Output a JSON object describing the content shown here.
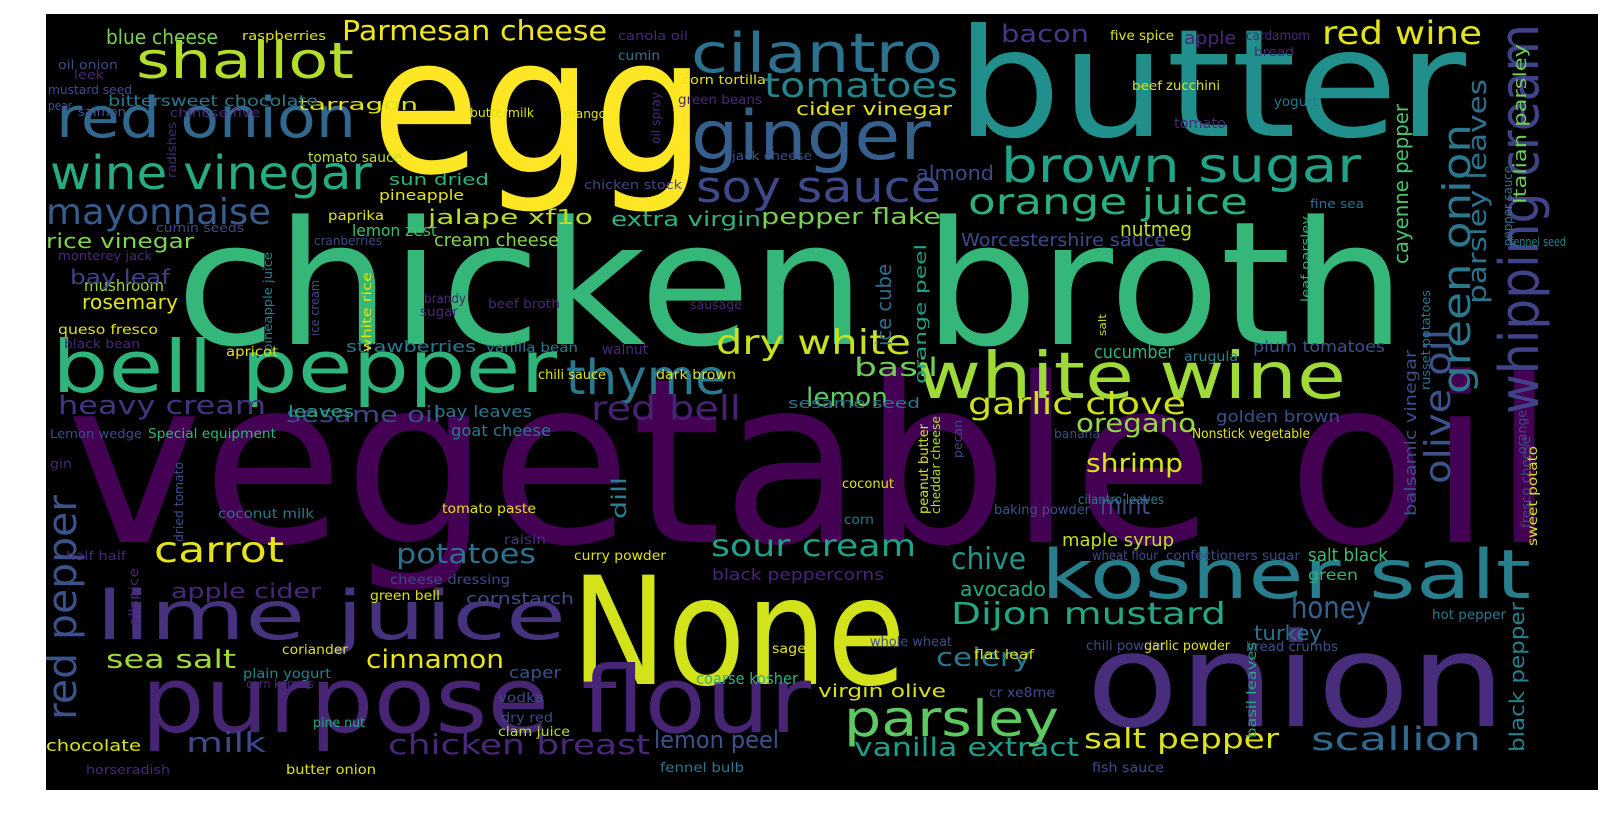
{
  "words": [
    {
      "text": "vegetable oil",
      "color": "#440154"
    },
    {
      "text": "chicken broth",
      "color": "#35b779"
    },
    {
      "text": "egg",
      "color": "#fde725"
    },
    {
      "text": "butter",
      "color": "#21908d"
    },
    {
      "text": "None",
      "color": "#d2e21b"
    },
    {
      "text": "onion",
      "color": "#472d7b"
    },
    {
      "text": "purpose flour",
      "color": "#482475"
    },
    {
      "text": "bell pepper",
      "color": "#2fb47c"
    },
    {
      "text": "lime juice",
      "color": "#46327e"
    },
    {
      "text": "kosher salt",
      "color": "#277f8e"
    },
    {
      "text": "ginger",
      "color": "#355f8d"
    },
    {
      "text": "white wine",
      "color": "#a0da39"
    },
    {
      "text": "red onion",
      "color": "#31688e"
    },
    {
      "text": "whipping cream",
      "color": "#404387"
    },
    {
      "text": "cilantro",
      "color": "#2c728e"
    },
    {
      "text": "shallot",
      "color": "#b5de2b"
    },
    {
      "text": "brown sugar",
      "color": "#20a386"
    },
    {
      "text": "wine vinegar",
      "color": "#25ac82"
    },
    {
      "text": "soy sauce",
      "color": "#3e4989"
    },
    {
      "text": "thyme",
      "color": "#2a788e"
    },
    {
      "text": "parsley",
      "color": "#5ec962"
    },
    {
      "text": "orange juice",
      "color": "#2ab07f"
    },
    {
      "text": "green onion",
      "color": "#2a778e"
    },
    {
      "text": "red pepper",
      "color": "#3b528b"
    },
    {
      "text": "mayonnaise",
      "color": "#365c8d"
    },
    {
      "text": "tomatoes",
      "color": "#25858e"
    },
    {
      "text": "dry white",
      "color": "#c8e020"
    },
    {
      "text": "Dijon mustard",
      "color": "#22a884"
    },
    {
      "text": "carrot",
      "color": "#e5e419"
    },
    {
      "text": "olive oil",
      "color": "#3b528b"
    },
    {
      "text": "sour cream",
      "color": "#1fa287"
    },
    {
      "text": "garlic clove",
      "color": "#d0e11c"
    },
    {
      "text": "red wine",
      "color": "#e2e418"
    },
    {
      "text": "Parmesan cheese",
      "color": "#f1e51d"
    },
    {
      "text": "chicken breast",
      "color": "#482878"
    },
    {
      "text": "scallion",
      "color": "#31688e"
    },
    {
      "text": "vanilla extract",
      "color": "#1f9e89"
    },
    {
      "text": "salt pepper",
      "color": "#dde318"
    },
    {
      "text": "potatoes",
      "color": "#2c728e"
    },
    {
      "text": "chive",
      "color": "#1f958b"
    },
    {
      "text": "honey",
      "color": "#33638d"
    },
    {
      "text": "lemon peel",
      "color": "#3b528b"
    },
    {
      "text": "heavy cream",
      "color": "#46337e"
    },
    {
      "text": "parsley leaves",
      "color": "#2d718e"
    },
    {
      "text": "red bell",
      "color": "#482173"
    },
    {
      "text": "shrimp",
      "color": "#dde318"
    },
    {
      "text": "sea salt",
      "color": "#9fda3a"
    },
    {
      "text": "cinnamon",
      "color": "#e7e419"
    },
    {
      "text": "milk",
      "color": "#3f4889"
    },
    {
      "text": "mint",
      "color": "#3e4c8a"
    },
    {
      "text": "celery",
      "color": "#2a788e"
    },
    {
      "text": "basil",
      "color": "#6ece58"
    },
    {
      "text": "lemon",
      "color": "#5ec962"
    },
    {
      "text": "oregano",
      "color": "#95d840"
    },
    {
      "text": "bacon",
      "color": "#443983"
    },
    {
      "text": "black pepper",
      "color": "#26828e"
    },
    {
      "text": "Italian parsley",
      "color": "#6ece58"
    },
    {
      "text": "cayenne pepper",
      "color": "#4ac16d"
    },
    {
      "text": "pepper flake",
      "color": "#7ad151"
    },
    {
      "text": "extra virgin",
      "color": "#2db27d"
    },
    {
      "text": "sesame oil",
      "color": "#3e4a89"
    },
    {
      "text": "cider vinegar",
      "color": "#e5e419"
    },
    {
      "text": "jalape xf1o",
      "color": "#b8de29"
    },
    {
      "text": "rosemary",
      "color": "#e3e418"
    },
    {
      "text": "rice vinegar",
      "color": "#7fd34e"
    },
    {
      "text": "mushroom",
      "color": "#9bd93c"
    },
    {
      "text": "blue cheese",
      "color": "#7ad151"
    },
    {
      "text": "ice cube",
      "color": "#2e6e8e"
    },
    {
      "text": "turkey",
      "color": "#2c728e"
    },
    {
      "text": "avocado",
      "color": "#22a884"
    },
    {
      "text": "orange peel",
      "color": "#1fa188"
    },
    {
      "text": "nutmeg",
      "color": "#bddf26"
    },
    {
      "text": "lemon zest",
      "color": "#3fbc73"
    },
    {
      "text": "cream cheese",
      "color": "#85d54a"
    },
    {
      "text": "almond",
      "color": "#3e4989"
    },
    {
      "text": "apple cider",
      "color": "#482878"
    },
    {
      "text": "bay leaf",
      "color": "#414287"
    },
    {
      "text": "cucumber",
      "color": "#2fb47c"
    },
    {
      "text": "dill",
      "color": "#26828e"
    },
    {
      "text": "maple syrup",
      "color": "#c2df23"
    },
    {
      "text": "salt black",
      "color": "#3fbc73"
    },
    {
      "text": "Worcestershire sauce",
      "color": "#3e4a89"
    },
    {
      "text": "balsamic vinegar",
      "color": "#3d4e8a"
    },
    {
      "text": "plum tomatoes",
      "color": "#3b528b"
    },
    {
      "text": "golden brown",
      "color": "#3b518b"
    },
    {
      "text": "black peppercorns",
      "color": "#482677"
    },
    {
      "text": "cornstarch",
      "color": "#3e4c8a"
    },
    {
      "text": "coarse kosher",
      "color": "#2db27d"
    },
    {
      "text": "virgin olive",
      "color": "#d8e219"
    },
    {
      "text": "sesame seed",
      "color": "#2c728e"
    },
    {
      "text": "goat cheese",
      "color": "#2a788e"
    },
    {
      "text": "bay leaves",
      "color": "#2a788e"
    },
    {
      "text": "leaves",
      "color": "#20a386"
    },
    {
      "text": "strawberries",
      "color": "#2a788e"
    },
    {
      "text": "tarragon",
      "color": "#dfe318"
    },
    {
      "text": "bittersweet chocolate",
      "color": "#2a788e"
    },
    {
      "text": "sun dried",
      "color": "#2fb47c"
    },
    {
      "text": "pineapple",
      "color": "#e5e419"
    },
    {
      "text": "tomato sauce",
      "color": "#bddf26"
    },
    {
      "text": "chocolate",
      "color": "#dde318"
    },
    {
      "text": "caper",
      "color": "#3b528b"
    },
    {
      "text": "coriander",
      "color": "#d8e219"
    },
    {
      "text": "plain yogurt",
      "color": "#26828e"
    },
    {
      "text": "pine nut",
      "color": "#22a884"
    },
    {
      "text": "vodka",
      "color": "#3e4989"
    },
    {
      "text": "dry red",
      "color": "#3e4989"
    },
    {
      "text": "clam juice",
      "color": "#b5de2b"
    },
    {
      "text": "butter onion",
      "color": "#dde318"
    },
    {
      "text": "fennel bulb",
      "color": "#2a788e"
    },
    {
      "text": "fish sauce",
      "color": "#3e4c8a"
    },
    {
      "text": "flat leaf",
      "color": "#d8e219"
    },
    {
      "text": "cr xe8me",
      "color": "#3e4c8a"
    },
    {
      "text": "whole wheat",
      "color": "#3e4c8a"
    },
    {
      "text": "sage",
      "color": "#dfe318"
    },
    {
      "text": "green bell",
      "color": "#dfe318"
    },
    {
      "text": "cheese dressing",
      "color": "#3e4989"
    },
    {
      "text": "coconut milk",
      "color": "#2a788e"
    },
    {
      "text": "tomato paste",
      "color": "#dfe318"
    },
    {
      "text": "curry powder",
      "color": "#dfe318"
    },
    {
      "text": "raisin",
      "color": "#46327e"
    },
    {
      "text": "corn",
      "color": "#2a788e"
    },
    {
      "text": "coconut",
      "color": "#dfe318"
    },
    {
      "text": "baking powder",
      "color": "#3b528b"
    },
    {
      "text": "cilantro leaves",
      "color": "#2a788e"
    },
    {
      "text": "wheat flour",
      "color": "#3e4989"
    },
    {
      "text": "confectioners sugar",
      "color": "#3e4989"
    },
    {
      "text": "green",
      "color": "#2fb47c"
    },
    {
      "text": "chili powder",
      "color": "#3e4989"
    },
    {
      "text": "garlic powder",
      "color": "#dfe318"
    },
    {
      "text": "bread crumbs",
      "color": "#3b528b"
    },
    {
      "text": "hot pepper",
      "color": "#2a788e"
    },
    {
      "text": "basil leaves",
      "color": "#22a884"
    },
    {
      "text": "Nonstick vegetable",
      "color": "#e5e419"
    },
    {
      "text": "banana",
      "color": "#3e4c8a"
    },
    {
      "text": "pecan",
      "color": "#3e4989"
    },
    {
      "text": "peanut butter",
      "color": "#d8e219"
    },
    {
      "text": "cheddar cheese",
      "color": "#b5de2b"
    },
    {
      "text": "arugula",
      "color": "#26828e"
    },
    {
      "text": "sweet potato",
      "color": "#d8e219"
    },
    {
      "text": "orange",
      "color": "#3e4989"
    },
    {
      "text": "fresco cheese",
      "color": "#3e4c8a"
    },
    {
      "text": "russet potatoes",
      "color": "#2c728e"
    },
    {
      "text": "fennel seed",
      "color": "#26828e"
    },
    {
      "text": "fine sea",
      "color": "#2c728e"
    },
    {
      "text": "pepper sauce",
      "color": "#2c728e"
    },
    {
      "text": "leaf parsley",
      "color": "#2db27d"
    },
    {
      "text": "salt",
      "color": "#bddf26"
    },
    {
      "text": "walnut",
      "color": "#482878"
    },
    {
      "text": "vanilla bean",
      "color": "#2a788e"
    },
    {
      "text": "chili sauce",
      "color": "#dfe318"
    },
    {
      "text": "dark brown",
      "color": "#dfe318"
    },
    {
      "text": "sausage",
      "color": "#482878"
    },
    {
      "text": "beef broth",
      "color": "#482878"
    },
    {
      "text": "brandy",
      "color": "#482878"
    },
    {
      "text": "sugar",
      "color": "#482878"
    },
    {
      "text": "pineapple juice",
      "color": "#26828e"
    },
    {
      "text": "ice cream",
      "color": "#3e4989"
    },
    {
      "text": "white rice",
      "color": "#dfe318"
    },
    {
      "text": "chicken stock",
      "color": "#3e4989"
    },
    {
      "text": "paprika",
      "color": "#dfe318"
    },
    {
      "text": "cranberries",
      "color": "#3e4989"
    },
    {
      "text": "cumin seeds",
      "color": "#3e4989"
    },
    {
      "text": "monterey jack",
      "color": "#482878"
    },
    {
      "text": "queso fresco",
      "color": "#dfe318"
    },
    {
      "text": "black bean",
      "color": "#482878"
    },
    {
      "text": "apricot",
      "color": "#dfe318"
    },
    {
      "text": "Lemon wedge",
      "color": "#3e4c8a"
    },
    {
      "text": "Special equipment",
      "color": "#2fb47c"
    },
    {
      "text": "gin",
      "color": "#482878"
    },
    {
      "text": "dried tomato",
      "color": "#3e4c8a"
    },
    {
      "text": "half half",
      "color": "#482878"
    },
    {
      "text": "allspice",
      "color": "#482878"
    },
    {
      "text": "corn kernels",
      "color": "#482878"
    },
    {
      "text": "horseradish",
      "color": "#482878"
    },
    {
      "text": "radishes",
      "color": "#482878"
    },
    {
      "text": "chinese five",
      "color": "#482878"
    },
    {
      "text": "salmon",
      "color": "#3b528b"
    },
    {
      "text": "pear",
      "color": "#3b528b"
    },
    {
      "text": "leek",
      "color": "#482878"
    },
    {
      "text": "mustard seed",
      "color": "#3e4c8a"
    },
    {
      "text": "oil onion",
      "color": "#3e4c8a"
    },
    {
      "text": "raspberries",
      "color": "#dfe318"
    },
    {
      "text": "canola oil",
      "color": "#482878"
    },
    {
      "text": "cumin",
      "color": "#2a788e"
    },
    {
      "text": "corn tortilla",
      "color": "#dfe318"
    },
    {
      "text": "green beans",
      "color": "#482878"
    },
    {
      "text": "oil spray",
      "color": "#482878"
    },
    {
      "text": "buttermilk",
      "color": "#dfe318"
    },
    {
      "text": "mango",
      "color": "#dfe318"
    },
    {
      "text": "jack cheese",
      "color": "#3e4c8a"
    },
    {
      "text": "five spice",
      "color": "#dfe318"
    },
    {
      "text": "apple",
      "color": "#482878"
    },
    {
      "text": "cardamom",
      "color": "#482878"
    },
    {
      "text": "bread",
      "color": "#482878"
    },
    {
      "text": "beef",
      "color": "#dfe318"
    },
    {
      "text": "zucchini",
      "color": "#dfe318"
    },
    {
      "text": "yogurt",
      "color": "#2a788e"
    },
    {
      "text": "tomato",
      "color": "#482878"
    }
  ]
}
